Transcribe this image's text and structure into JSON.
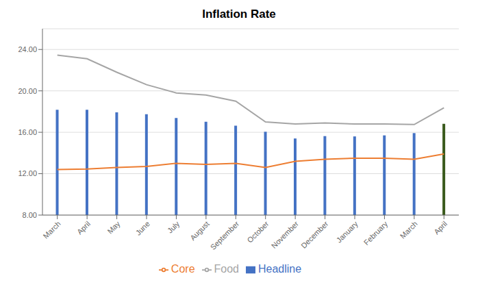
{
  "chart_data": {
    "type": "bar",
    "title": "Inflation Rate",
    "categories": [
      "March",
      "April",
      "May",
      "June",
      "July",
      "August",
      "September",
      "October",
      "November",
      "December",
      "January",
      "February",
      "March",
      "April"
    ],
    "series": [
      {
        "name": "Headline",
        "type": "bar",
        "color": "#4472C4",
        "colors": [
          "#4472C4",
          "#4472C4",
          "#4472C4",
          "#4472C4",
          "#4472C4",
          "#4472C4",
          "#4472C4",
          "#4472C4",
          "#4472C4",
          "#4472C4",
          "#4472C4",
          "#4472C4",
          "#4472C4",
          "#3A5A1C"
        ],
        "values": [
          18.17,
          18.17,
          17.93,
          17.75,
          17.38,
          17.01,
          16.63,
          16.05,
          15.4,
          15.63,
          15.6,
          15.7,
          15.92,
          16.82
        ]
      },
      {
        "name": "Core",
        "type": "line",
        "color": "#ED7D31",
        "values": [
          12.4,
          12.45,
          12.6,
          12.7,
          13.0,
          12.9,
          13.0,
          12.6,
          13.2,
          13.4,
          13.5,
          13.5,
          13.4,
          13.9
        ]
      },
      {
        "name": "Food",
        "type": "line",
        "color": "#A5A5A5",
        "values": [
          23.45,
          23.1,
          21.8,
          20.6,
          19.8,
          19.6,
          19.0,
          17.0,
          16.8,
          16.9,
          16.8,
          16.8,
          16.75,
          18.37
        ]
      }
    ],
    "ylim": [
      8.0,
      26.0
    ],
    "yticks": [
      {
        "value": 8.0,
        "label": "8.00"
      },
      {
        "value": 12.0,
        "label": "12.00"
      },
      {
        "value": 16.0,
        "label": "16.00"
      },
      {
        "value": 20.0,
        "label": "20.00"
      },
      {
        "value": 24.0,
        "label": "24.00"
      }
    ],
    "grid": true,
    "legend": "bottom"
  }
}
